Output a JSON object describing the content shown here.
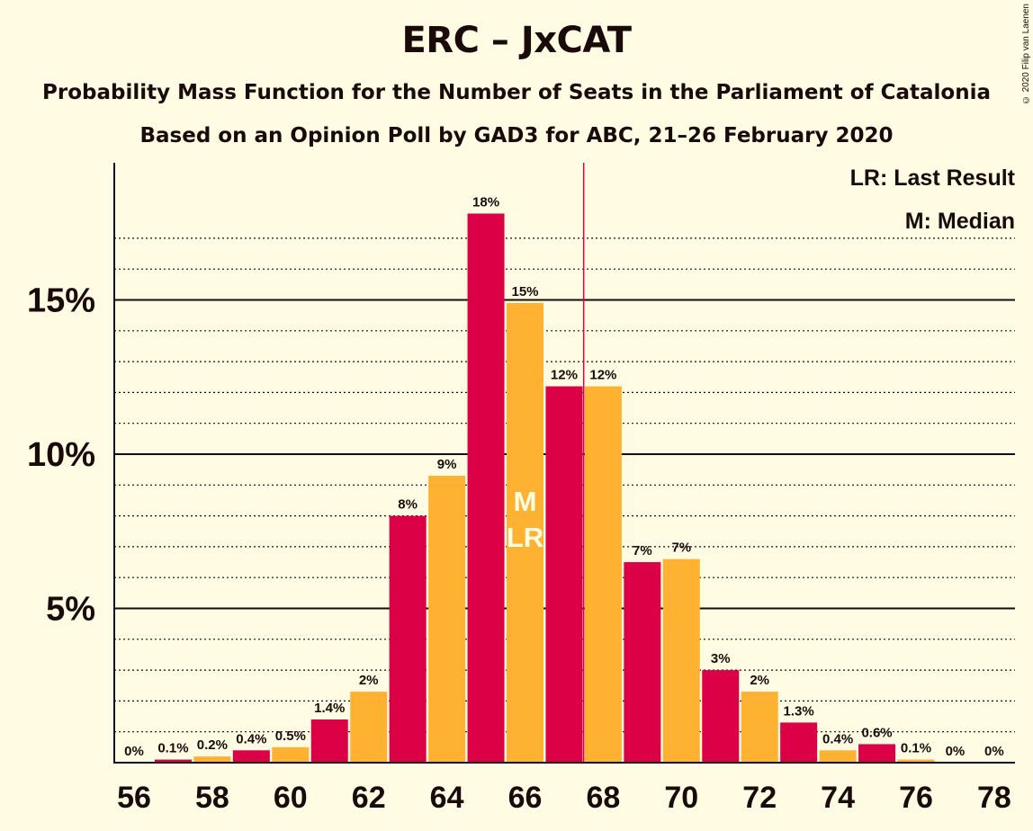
{
  "title": "ERC – JxCAT",
  "subtitle1": "Probability Mass Function for the Number of Seats in the Parliament of Catalonia",
  "subtitle2": "Based on an Opinion Poll by GAD3 for ABC, 21–26 February 2020",
  "copyright": "© 2020 Filip van Laenen",
  "legend": {
    "lr": "LR: Last Result",
    "m": "M: Median"
  },
  "colors": {
    "primary": "#DC0046",
    "secondary": "#FFB232",
    "background": "#FFFCE3",
    "last_result_line": "#DC0046"
  },
  "chart_data": {
    "type": "bar",
    "categories": [
      56,
      57,
      58,
      59,
      60,
      61,
      62,
      63,
      64,
      65,
      66,
      67,
      68,
      69,
      70,
      71,
      72,
      73,
      74,
      75,
      76,
      77,
      78
    ],
    "values": [
      0.0,
      0.1,
      0.2,
      0.4,
      0.5,
      1.4,
      2.3,
      8.0,
      9.3,
      17.8,
      14.9,
      12.2,
      12.2,
      6.5,
      6.6,
      3.0,
      2.3,
      1.3,
      0.4,
      0.6,
      0.1,
      0.0,
      0.0
    ],
    "labels": [
      "0%",
      "0.1%",
      "0.2%",
      "0.4%",
      "0.5%",
      "1.4%",
      "2%",
      "8%",
      "9%",
      "18%",
      "15%",
      "12%",
      "12%",
      "7%",
      "7%",
      "3%",
      "2%",
      "1.3%",
      "0.4%",
      "0.6%",
      "0.1%",
      "0%",
      "0%"
    ],
    "x_ticks": [
      "56",
      "58",
      "60",
      "62",
      "64",
      "66",
      "68",
      "70",
      "72",
      "74",
      "76",
      "78"
    ],
    "y_ticks": [
      "5%",
      "10%",
      "15%"
    ],
    "y_tick_values": [
      5,
      10,
      15
    ],
    "ylim": [
      0,
      19
    ],
    "median_seat": 66,
    "median_marker": "M",
    "last_result_seat": 66,
    "last_result_marker": "LR",
    "majority_line_after_seat": 67
  }
}
